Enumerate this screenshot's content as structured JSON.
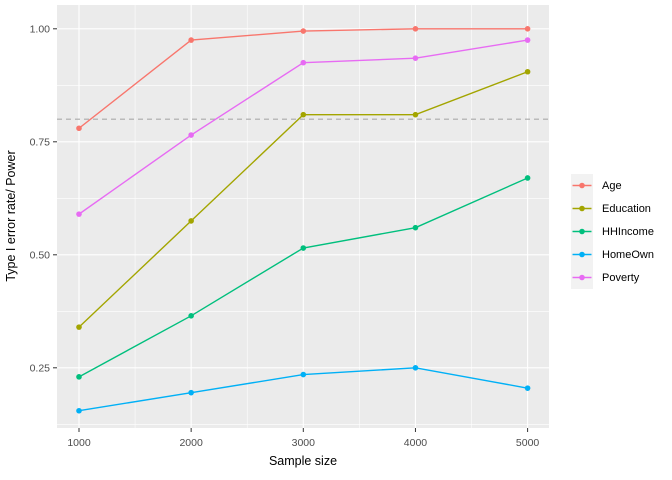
{
  "chart_data": {
    "type": "line",
    "title": "",
    "xlabel": "Sample size",
    "ylabel": "Type I error rate/ Power",
    "x": [
      1000,
      2000,
      3000,
      4000,
      5000
    ],
    "x_tick_labels": [
      "1000",
      "2000",
      "3000",
      "4000",
      "5000"
    ],
    "y_ticks": [
      0.25,
      0.5,
      0.75,
      1.0
    ],
    "y_tick_labels": [
      "0.25",
      "0.50",
      "0.75",
      "1.00"
    ],
    "x_minor_ticks": [
      1500,
      2500,
      3500,
      4500
    ],
    "y_minor_ticks": [
      0.125,
      0.375,
      0.625,
      0.875
    ],
    "xlim": [
      803,
      5197
    ],
    "ylim": [
      0.117,
      1.053
    ],
    "grid": true,
    "legend_position": "right",
    "reference_line": {
      "y": 0.8,
      "style": "dashed",
      "color": "#A9A9A9"
    },
    "series": [
      {
        "name": "Age",
        "color": "#F8766D",
        "values": [
          0.78,
          0.975,
          0.995,
          1.0,
          1.0
        ]
      },
      {
        "name": "Education",
        "color": "#A3A500",
        "values": [
          0.34,
          0.575,
          0.81,
          0.81,
          0.905
        ]
      },
      {
        "name": "HHIncome",
        "color": "#00BF7D",
        "values": [
          0.23,
          0.365,
          0.515,
          0.56,
          0.67
        ]
      },
      {
        "name": "HomeOwn",
        "color": "#00B0F6",
        "values": [
          0.155,
          0.195,
          0.235,
          0.25,
          0.205
        ]
      },
      {
        "name": "Poverty",
        "color": "#E76BF3",
        "values": [
          0.59,
          0.765,
          0.925,
          0.935,
          0.975
        ]
      }
    ],
    "colors": {
      "panel_background": "#EBEBEB",
      "gridline": "#FFFFFF",
      "axis_text": "#4D4D4D",
      "axis_title": "#000000",
      "tick_mark": "#333333",
      "legend_key_background": "#F2F2F2",
      "figure_background": "#FFFFFF"
    }
  }
}
